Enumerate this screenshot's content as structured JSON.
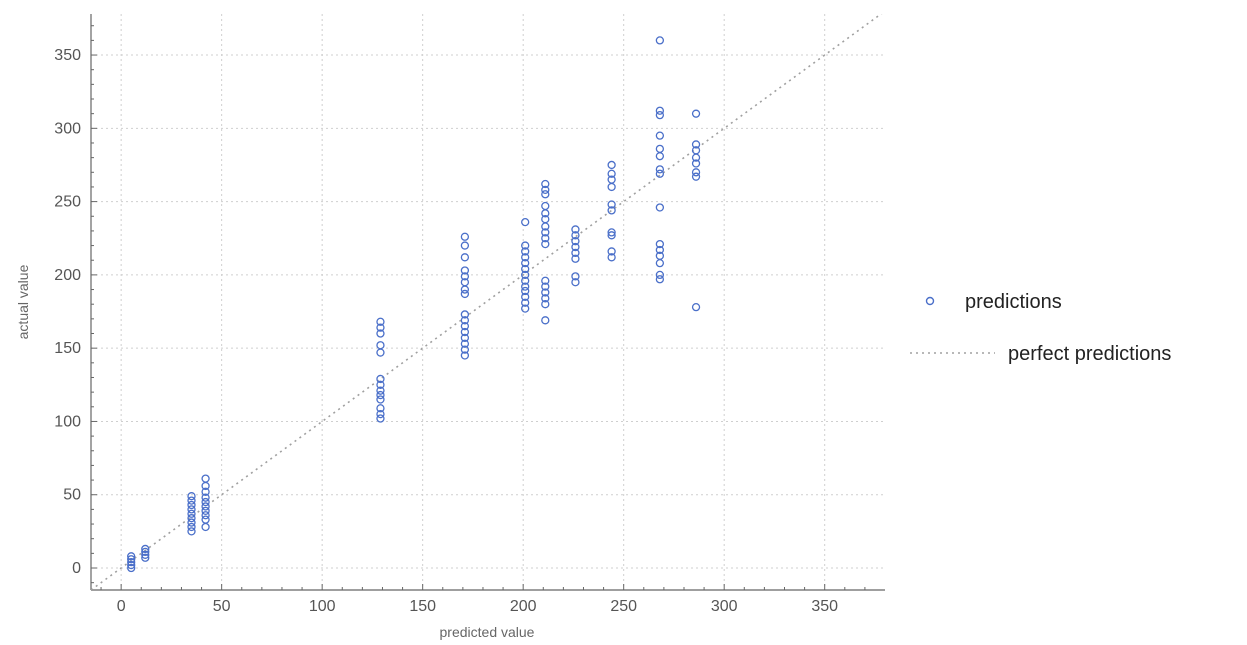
{
  "chart_data": {
    "type": "scatter",
    "xlabel": "predicted value",
    "ylabel": "actual value",
    "xlim": [
      -15,
      380
    ],
    "ylim": [
      -15,
      378
    ],
    "x_ticks": [
      0,
      50,
      100,
      150,
      200,
      250,
      300,
      350
    ],
    "y_ticks": [
      0,
      50,
      100,
      150,
      200,
      250,
      300,
      350
    ],
    "grid": true,
    "legend_position": "right",
    "colors": {
      "predictions": "#4a6fc9",
      "perfect": "#a0a0a0",
      "grid": "#cfcfcf",
      "frame": "#666666"
    },
    "series": [
      {
        "name": "predictions",
        "marker": "open-circle",
        "points": [
          [
            5,
            0
          ],
          [
            5,
            2
          ],
          [
            5,
            4
          ],
          [
            5,
            6
          ],
          [
            5,
            8
          ],
          [
            12,
            7
          ],
          [
            12,
            9
          ],
          [
            12,
            11
          ],
          [
            12,
            13
          ],
          [
            35,
            25
          ],
          [
            35,
            28
          ],
          [
            35,
            31
          ],
          [
            35,
            34
          ],
          [
            35,
            37
          ],
          [
            35,
            40
          ],
          [
            35,
            43
          ],
          [
            35,
            46
          ],
          [
            35,
            49
          ],
          [
            42,
            28
          ],
          [
            42,
            33
          ],
          [
            42,
            36
          ],
          [
            42,
            39
          ],
          [
            42,
            42
          ],
          [
            42,
            45
          ],
          [
            42,
            48
          ],
          [
            42,
            52
          ],
          [
            42,
            56
          ],
          [
            42,
            61
          ],
          [
            129,
            102
          ],
          [
            129,
            105
          ],
          [
            129,
            109
          ],
          [
            129,
            115
          ],
          [
            129,
            118
          ],
          [
            129,
            121
          ],
          [
            129,
            125
          ],
          [
            129,
            129
          ],
          [
            129,
            147
          ],
          [
            129,
            152
          ],
          [
            129,
            160
          ],
          [
            129,
            164
          ],
          [
            129,
            168
          ],
          [
            171,
            145
          ],
          [
            171,
            149
          ],
          [
            171,
            153
          ],
          [
            171,
            157
          ],
          [
            171,
            161
          ],
          [
            171,
            165
          ],
          [
            171,
            169
          ],
          [
            171,
            173
          ],
          [
            171,
            187
          ],
          [
            171,
            190
          ],
          [
            171,
            195
          ],
          [
            171,
            199
          ],
          [
            171,
            203
          ],
          [
            171,
            212
          ],
          [
            171,
            220
          ],
          [
            171,
            226
          ],
          [
            201,
            177
          ],
          [
            201,
            181
          ],
          [
            201,
            185
          ],
          [
            201,
            189
          ],
          [
            201,
            192
          ],
          [
            201,
            196
          ],
          [
            201,
            200
          ],
          [
            201,
            204
          ],
          [
            201,
            208
          ],
          [
            201,
            212
          ],
          [
            201,
            216
          ],
          [
            201,
            220
          ],
          [
            201,
            236
          ],
          [
            211,
            169
          ],
          [
            211,
            180
          ],
          [
            211,
            184
          ],
          [
            211,
            188
          ],
          [
            211,
            192
          ],
          [
            211,
            196
          ],
          [
            211,
            221
          ],
          [
            211,
            225
          ],
          [
            211,
            229
          ],
          [
            211,
            233
          ],
          [
            211,
            238
          ],
          [
            211,
            242
          ],
          [
            211,
            247
          ],
          [
            211,
            255
          ],
          [
            211,
            258
          ],
          [
            211,
            262
          ],
          [
            226,
            195
          ],
          [
            226,
            199
          ],
          [
            226,
            211
          ],
          [
            226,
            215
          ],
          [
            226,
            219
          ],
          [
            226,
            223
          ],
          [
            226,
            227
          ],
          [
            226,
            231
          ],
          [
            244,
            212
          ],
          [
            244,
            216
          ],
          [
            244,
            227
          ],
          [
            244,
            229
          ],
          [
            244,
            244
          ],
          [
            244,
            248
          ],
          [
            244,
            260
          ],
          [
            244,
            265
          ],
          [
            244,
            269
          ],
          [
            244,
            275
          ],
          [
            268,
            197
          ],
          [
            268,
            200
          ],
          [
            268,
            208
          ],
          [
            268,
            213
          ],
          [
            268,
            217
          ],
          [
            268,
            221
          ],
          [
            268,
            246
          ],
          [
            268,
            269
          ],
          [
            268,
            272
          ],
          [
            268,
            281
          ],
          [
            268,
            286
          ],
          [
            268,
            295
          ],
          [
            268,
            309
          ],
          [
            268,
            312
          ],
          [
            268,
            360
          ],
          [
            286,
            178
          ],
          [
            286,
            267
          ],
          [
            286,
            270
          ],
          [
            286,
            276
          ],
          [
            286,
            280
          ],
          [
            286,
            285
          ],
          [
            286,
            289
          ],
          [
            286,
            310
          ]
        ]
      },
      {
        "name": "perfect predictions",
        "line": "dotted",
        "x": [
          -15,
          380
        ],
        "y": [
          -15,
          380
        ]
      }
    ]
  }
}
